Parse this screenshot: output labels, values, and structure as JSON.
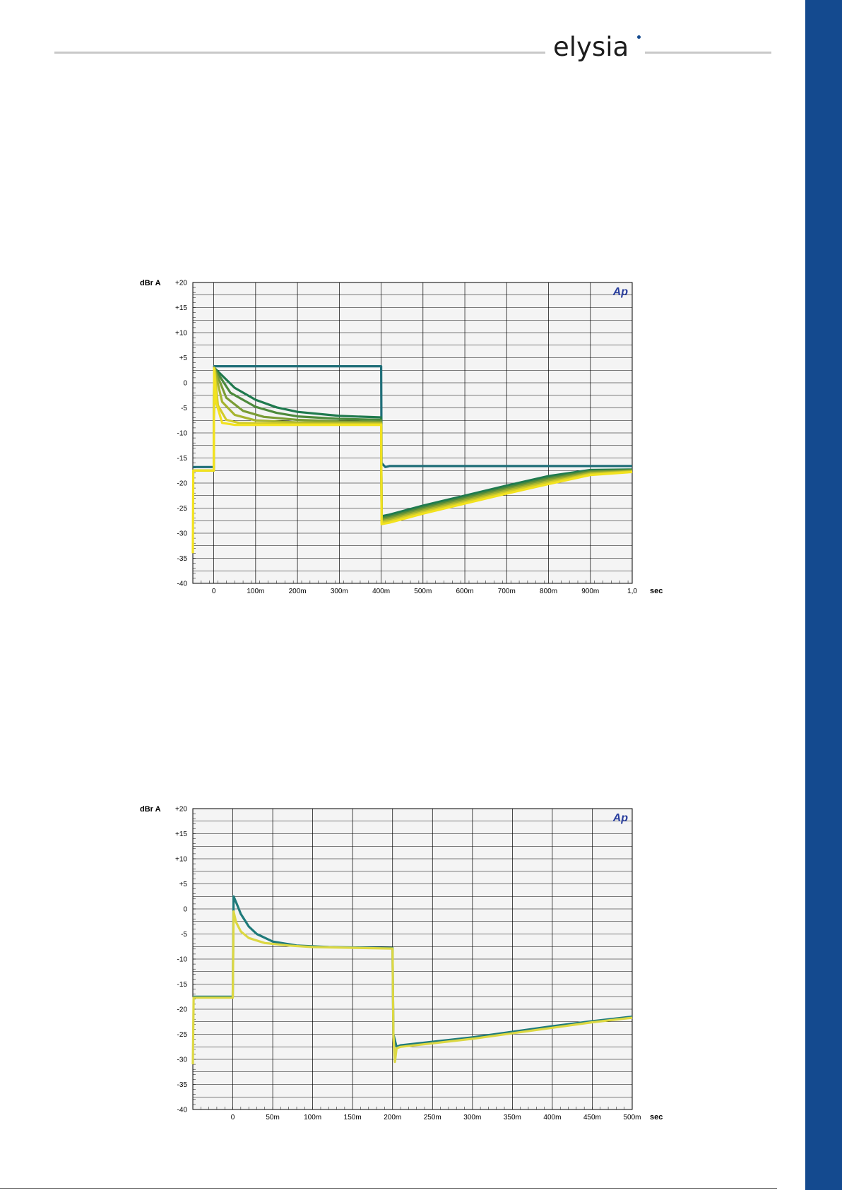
{
  "brand": {
    "logo_text": "elysia",
    "accent": "#144a8f"
  },
  "chart_data": [
    {
      "type": "line",
      "ylabel": "dBr A",
      "xlabel": "sec",
      "ylim": [
        -40,
        20
      ],
      "xlim": [
        -0.05,
        1.0
      ],
      "xticks": [
        0,
        0.1,
        0.2,
        0.3,
        0.4,
        0.5,
        0.6,
        0.7,
        0.8,
        0.9,
        1.0
      ],
      "xtick_labels": [
        "0",
        "100m",
        "200m",
        "300m",
        "400m",
        "500m",
        "600m",
        "700m",
        "800m",
        "900m",
        "1,0"
      ],
      "yticks": [
        20,
        15,
        10,
        5,
        0,
        -5,
        -10,
        -15,
        -20,
        -25,
        -30,
        -35,
        -40
      ],
      "ytick_labels": [
        "+20",
        "+15",
        "+10",
        "+5",
        "0",
        "-5",
        "-10",
        "-15",
        "-20",
        "-25",
        "-30",
        "-35",
        "-40"
      ],
      "grid": true,
      "watermark": "Ap",
      "series": [
        {
          "color": "#1f6e78",
          "points": [
            [
              -0.05,
              -16.8
            ],
            [
              0,
              -16.8
            ],
            [
              0.001,
              3.3
            ],
            [
              0.4,
              3.3
            ],
            [
              0.401,
              -16.0
            ],
            [
              0.41,
              -16.8
            ],
            [
              0.42,
              -16.6
            ],
            [
              1.0,
              -16.6
            ]
          ]
        },
        {
          "color": "#1f7a4e",
          "points": [
            [
              -0.05,
              -17.5
            ],
            [
              0,
              -17.5
            ],
            [
              0.001,
              3.0
            ],
            [
              0.05,
              -1.0
            ],
            [
              0.1,
              -3.4
            ],
            [
              0.15,
              -4.9
            ],
            [
              0.2,
              -5.8
            ],
            [
              0.3,
              -6.6
            ],
            [
              0.4,
              -6.9
            ],
            [
              0.401,
              -26.6
            ],
            [
              0.42,
              -26.3
            ],
            [
              0.5,
              -24.5
            ],
            [
              0.6,
              -22.5
            ],
            [
              0.7,
              -20.5
            ],
            [
              0.8,
              -18.6
            ],
            [
              0.9,
              -17.4
            ],
            [
              1.0,
              -17.3
            ]
          ]
        },
        {
          "color": "#4d8a3c",
          "points": [
            [
              -0.05,
              -17.5
            ],
            [
              0,
              -17.5
            ],
            [
              0.001,
              3.0
            ],
            [
              0.04,
              -2.0
            ],
            [
              0.1,
              -4.8
            ],
            [
              0.15,
              -6.0
            ],
            [
              0.2,
              -6.7
            ],
            [
              0.3,
              -7.2
            ],
            [
              0.4,
              -7.4
            ],
            [
              0.401,
              -27.0
            ],
            [
              0.42,
              -26.7
            ],
            [
              0.5,
              -24.9
            ],
            [
              0.6,
              -22.9
            ],
            [
              0.7,
              -20.9
            ],
            [
              0.8,
              -19.0
            ],
            [
              0.9,
              -17.6
            ],
            [
              1.0,
              -17.4
            ]
          ]
        },
        {
          "color": "#7a9c35",
          "points": [
            [
              -0.05,
              -17.5
            ],
            [
              0,
              -17.5
            ],
            [
              0.001,
              3.0
            ],
            [
              0.03,
              -3.0
            ],
            [
              0.07,
              -5.6
            ],
            [
              0.12,
              -6.8
            ],
            [
              0.2,
              -7.4
            ],
            [
              0.3,
              -7.7
            ],
            [
              0.4,
              -7.8
            ],
            [
              0.401,
              -27.3
            ],
            [
              0.42,
              -27.0
            ],
            [
              0.5,
              -25.2
            ],
            [
              0.6,
              -23.2
            ],
            [
              0.7,
              -21.2
            ],
            [
              0.8,
              -19.3
            ],
            [
              0.9,
              -17.8
            ],
            [
              1.0,
              -17.5
            ]
          ]
        },
        {
          "color": "#a6b42f",
          "points": [
            [
              -0.05,
              -17.5
            ],
            [
              0,
              -17.5
            ],
            [
              0.001,
              3.0
            ],
            [
              0.02,
              -3.8
            ],
            [
              0.05,
              -6.4
            ],
            [
              0.1,
              -7.5
            ],
            [
              0.2,
              -7.9
            ],
            [
              0.4,
              -8.0
            ],
            [
              0.401,
              -27.6
            ],
            [
              0.42,
              -27.3
            ],
            [
              0.5,
              -25.5
            ],
            [
              0.6,
              -23.5
            ],
            [
              0.7,
              -21.5
            ],
            [
              0.8,
              -19.6
            ],
            [
              0.9,
              -18.0
            ],
            [
              1.0,
              -17.6
            ]
          ]
        },
        {
          "color": "#d2cc2a",
          "points": [
            [
              -0.05,
              -17.5
            ],
            [
              0,
              -17.5
            ],
            [
              0.001,
              3.0
            ],
            [
              0.01,
              -4.5
            ],
            [
              0.03,
              -7.4
            ],
            [
              0.06,
              -8.0
            ],
            [
              0.2,
              -8.2
            ],
            [
              0.4,
              -8.2
            ],
            [
              0.401,
              -27.9
            ],
            [
              0.42,
              -27.6
            ],
            [
              0.5,
              -25.8
            ],
            [
              0.6,
              -23.8
            ],
            [
              0.7,
              -21.8
            ],
            [
              0.8,
              -19.9
            ],
            [
              0.9,
              -18.2
            ],
            [
              1.0,
              -17.7
            ]
          ]
        },
        {
          "color": "#f2e21f",
          "points": [
            [
              -0.05,
              -34.0
            ],
            [
              -0.049,
              -17.5
            ],
            [
              0,
              -17.5
            ],
            [
              0.001,
              2.8
            ],
            [
              0.006,
              -4.0
            ],
            [
              0.02,
              -8.0
            ],
            [
              0.05,
              -8.4
            ],
            [
              0.4,
              -8.4
            ],
            [
              0.401,
              -28.2
            ],
            [
              0.42,
              -27.9
            ],
            [
              0.5,
              -26.1
            ],
            [
              0.6,
              -24.1
            ],
            [
              0.7,
              -22.1
            ],
            [
              0.8,
              -20.2
            ],
            [
              0.9,
              -18.4
            ],
            [
              1.0,
              -17.8
            ]
          ]
        }
      ]
    },
    {
      "type": "line",
      "ylabel": "dBr A",
      "xlabel": "sec",
      "ylim": [
        -40,
        20
      ],
      "xlim": [
        -0.05,
        0.5
      ],
      "xticks": [
        0,
        0.05,
        0.1,
        0.15,
        0.2,
        0.25,
        0.3,
        0.35,
        0.4,
        0.45,
        0.5
      ],
      "xtick_labels": [
        "0",
        "50m",
        "100m",
        "150m",
        "200m",
        "250m",
        "300m",
        "350m",
        "400m",
        "450m",
        "500m"
      ],
      "yticks": [
        20,
        15,
        10,
        5,
        0,
        -5,
        -10,
        -15,
        -20,
        -25,
        -30,
        -35,
        -40
      ],
      "ytick_labels": [
        "+20",
        "+15",
        "+10",
        "+5",
        "0",
        "-5",
        "-10",
        "-15",
        "-20",
        "-25",
        "-30",
        "-35",
        "-40"
      ],
      "grid": true,
      "watermark": "Ap",
      "series": [
        {
          "color": "#1f7a7a",
          "points": [
            [
              -0.05,
              -17.5
            ],
            [
              0,
              -17.5
            ],
            [
              0.001,
              2.5
            ],
            [
              0.005,
              1.0
            ],
            [
              0.01,
              -1.0
            ],
            [
              0.02,
              -3.5
            ],
            [
              0.03,
              -5.0
            ],
            [
              0.05,
              -6.5
            ],
            [
              0.08,
              -7.3
            ],
            [
              0.12,
              -7.6
            ],
            [
              0.2,
              -7.8
            ],
            [
              0.201,
              -25.0
            ],
            [
              0.205,
              -27.5
            ],
            [
              0.21,
              -27.2
            ],
            [
              0.25,
              -26.5
            ],
            [
              0.3,
              -25.6
            ],
            [
              0.35,
              -24.5
            ],
            [
              0.4,
              -23.4
            ],
            [
              0.45,
              -22.4
            ],
            [
              0.5,
              -21.5
            ]
          ]
        },
        {
          "color": "#dcd843",
          "points": [
            [
              -0.05,
              -31.0
            ],
            [
              -0.049,
              -17.7
            ],
            [
              0,
              -17.7
            ],
            [
              0.001,
              -0.5
            ],
            [
              0.004,
              -2.6
            ],
            [
              0.01,
              -4.5
            ],
            [
              0.02,
              -5.8
            ],
            [
              0.04,
              -6.8
            ],
            [
              0.07,
              -7.3
            ],
            [
              0.1,
              -7.6
            ],
            [
              0.2,
              -7.9
            ],
            [
              0.201,
              -25.0
            ],
            [
              0.203,
              -30.5
            ],
            [
              0.205,
              -27.8
            ],
            [
              0.21,
              -27.5
            ],
            [
              0.25,
              -26.8
            ],
            [
              0.3,
              -25.9
            ],
            [
              0.35,
              -24.8
            ],
            [
              0.4,
              -23.7
            ],
            [
              0.45,
              -22.6
            ],
            [
              0.5,
              -21.7
            ]
          ]
        }
      ]
    }
  ]
}
